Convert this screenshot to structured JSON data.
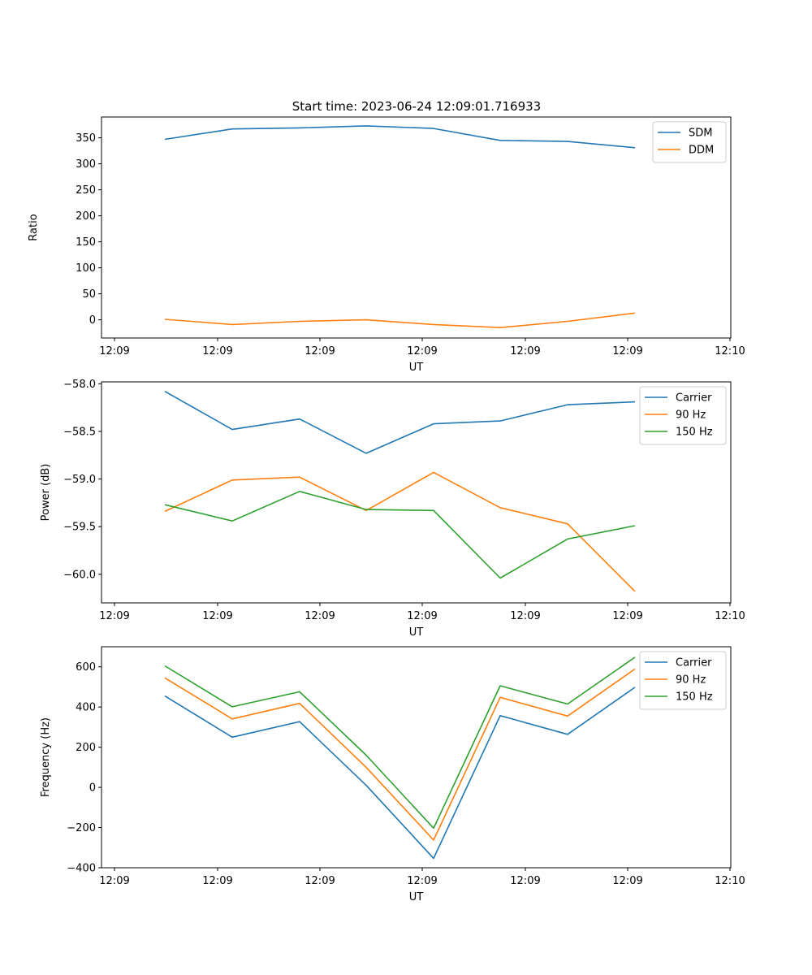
{
  "title": "Start time: 2023-06-24 12:09:01.716933",
  "chart_data": [
    {
      "type": "line",
      "xlabel": "UT",
      "ylabel": "Ratio",
      "xticklabels": [
        "12:09",
        "12:09",
        "12:09",
        "12:09",
        "12:09",
        "12:09",
        "12:10"
      ],
      "ylim": [
        -35,
        390
      ],
      "yticks": [
        0,
        50,
        100,
        150,
        200,
        250,
        300,
        350
      ],
      "legend": "top-right",
      "grid": false,
      "series": [
        {
          "name": "SDM",
          "color": "#1f77b4",
          "values": [
            347,
            367,
            369,
            373,
            368,
            345,
            343,
            331
          ]
        },
        {
          "name": "DDM",
          "color": "#ff7f0e",
          "values": [
            1,
            -9,
            -3,
            0,
            -9,
            -15,
            -3,
            13
          ]
        }
      ]
    },
    {
      "type": "line",
      "xlabel": "UT",
      "ylabel": "Power (dB)",
      "xticklabels": [
        "12:09",
        "12:09",
        "12:09",
        "12:09",
        "12:09",
        "12:09",
        "12:10"
      ],
      "ylim": [
        -60.3,
        -57.98
      ],
      "yticks": [
        -60.0,
        -59.5,
        -59.0,
        -58.5,
        -58.0
      ],
      "yticklabels": [
        "−60.0",
        "−59.5",
        "−59.0",
        "−58.5",
        "−58.0"
      ],
      "legend": "top-right",
      "grid": false,
      "series": [
        {
          "name": "Carrier",
          "color": "#1f77b4",
          "values": [
            -58.08,
            -58.48,
            -58.37,
            -58.73,
            -58.42,
            -58.39,
            -58.22,
            -58.19
          ]
        },
        {
          "name": "90 Hz",
          "color": "#ff7f0e",
          "values": [
            -59.34,
            -59.01,
            -58.98,
            -59.33,
            -58.93,
            -59.3,
            -59.47,
            -60.18
          ]
        },
        {
          "name": "150 Hz",
          "color": "#2ca02c",
          "values": [
            -59.27,
            -59.44,
            -59.13,
            -59.32,
            -59.33,
            -60.04,
            -59.63,
            -59.49
          ]
        }
      ]
    },
    {
      "type": "line",
      "xlabel": "UT",
      "ylabel": "Frequency (Hz)",
      "xticklabels": [
        "12:09",
        "12:09",
        "12:09",
        "12:09",
        "12:09",
        "12:09",
        "12:10"
      ],
      "ylim": [
        -400,
        700
      ],
      "yticks": [
        -400,
        -200,
        0,
        200,
        400,
        600
      ],
      "yticklabels": [
        "−400",
        "−200",
        "0",
        "200",
        "400",
        "600"
      ],
      "legend": "top-right",
      "grid": false,
      "series": [
        {
          "name": "Carrier",
          "color": "#1f77b4",
          "values": [
            455,
            250,
            327,
            10,
            -353,
            357,
            264,
            498
          ]
        },
        {
          "name": "90 Hz",
          "color": "#ff7f0e",
          "values": [
            545,
            341,
            418,
            100,
            -262,
            448,
            355,
            589
          ]
        },
        {
          "name": "150 Hz",
          "color": "#2ca02c",
          "values": [
            605,
            401,
            476,
            160,
            -203,
            506,
            415,
            648
          ]
        }
      ]
    }
  ]
}
